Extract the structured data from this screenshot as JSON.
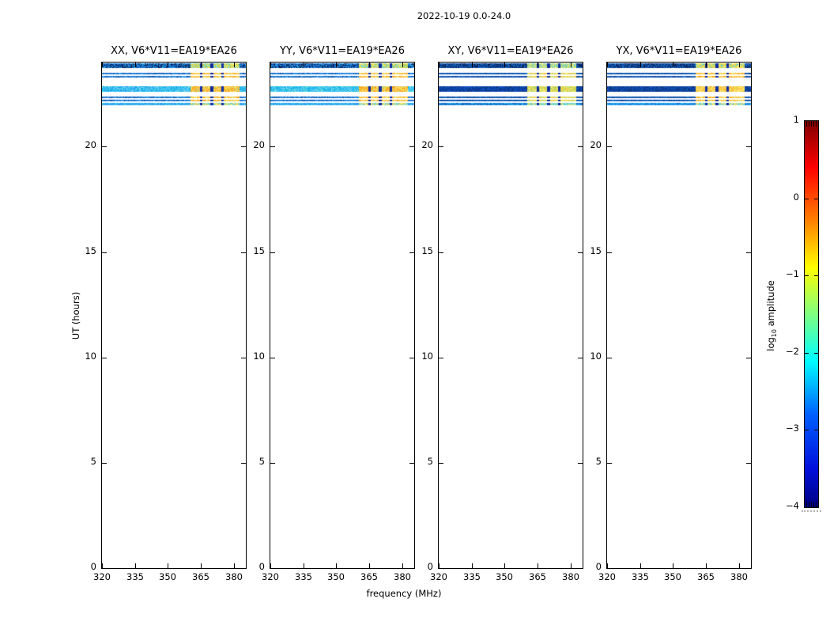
{
  "figure": {
    "title": "2022-10-19 0.0-24.0",
    "background": "#ffffff"
  },
  "chart_data": {
    "type": "heatmap",
    "title": "2022-10-19 0.0-24.0",
    "xlabel": "frequency (MHz)",
    "ylabel": "UT (hours)",
    "x_axis": {
      "range": [
        320,
        385.5
      ],
      "tick_values": [
        320,
        335,
        350,
        365,
        380
      ],
      "tick_labels": [
        "320",
        "335",
        "350",
        "365",
        "380"
      ]
    },
    "y_axis": {
      "range": [
        0,
        24
      ],
      "tick_values": [
        0,
        5,
        10,
        15,
        20
      ],
      "tick_labels": [
        "0",
        "5",
        "10",
        "15",
        "20"
      ]
    },
    "colorbar": {
      "label_prefix": "log",
      "label_sub": "10",
      "label_suffix": " amplitude",
      "range": [
        -4,
        1
      ],
      "tick_values": [
        1,
        0,
        -1,
        -2,
        -3,
        -4
      ],
      "tick_labels": [
        "1",
        "0",
        "−1",
        "−2",
        "−3",
        "−4"
      ],
      "colormap": "jet",
      "gradient_stops": [
        [
          "#7f0000",
          0
        ],
        [
          "#ff0000",
          12
        ],
        [
          "#ff8c00",
          27
        ],
        [
          "#ffff00",
          38
        ],
        [
          "#7fff7f",
          50
        ],
        [
          "#00ffff",
          62
        ],
        [
          "#0060ff",
          76
        ],
        [
          "#0010dd",
          90
        ],
        [
          "#00007f",
          100
        ]
      ]
    },
    "band_rows": [
      {
        "ut": [
          23.74,
          23.96
        ],
        "kind": "top"
      },
      {
        "ut": [
          23.44,
          23.53
        ],
        "kind": "thin"
      },
      {
        "ut": [
          23.27,
          23.36
        ],
        "kind": "thin"
      },
      {
        "ut": [
          22.61,
          22.87
        ],
        "kind": "thick"
      },
      {
        "ut": [
          22.31,
          22.4
        ],
        "kind": "thin"
      },
      {
        "ut": [
          22.16,
          22.25
        ],
        "kind": "thin"
      },
      {
        "ut": [
          21.97,
          22.07
        ],
        "kind": "dim"
      }
    ],
    "rfi": {
      "block_range_mhz": [
        360,
        382.3
      ],
      "gaps_mhz": [
        [
          364.3,
          365.4
        ],
        [
          369.3,
          370.4
        ],
        [
          374.3,
          375.4
        ]
      ]
    },
    "panels": [
      {
        "id": "xx",
        "title": "XX, V6*V11=EA19*EA26",
        "palettes": {
          "top_left": [
            "#1565c0",
            "#1e88e5",
            "#0d47a1",
            "#29b6f6",
            "#0b2d73",
            "#041133",
            "#1976d2"
          ],
          "top_block": [
            "#d4e157",
            "#fff176",
            "#4dd0e1",
            "#aed581",
            "#ffd54f",
            "#80deea",
            "#c0ca33"
          ],
          "thin_left": [
            "#1976d2",
            "#1565c0",
            "#2196f3",
            "#0d47a1",
            "#42a5f5"
          ],
          "thin_block": [
            "#ffb74d",
            "#ffa726",
            "#ffd54f",
            "#fff176",
            "#ff9800",
            "#dce775"
          ],
          "thick_left": [
            "#29b6f6",
            "#4fc3f7",
            "#03a9f4",
            "#81d4fa",
            "#26c6da",
            "#2196f3",
            "#4dd0e1"
          ],
          "thick_block": [
            "#ffd54f",
            "#ffca28",
            "#ffb74d",
            "#fff176",
            "#ffa726",
            "#aed581",
            "#ff9800"
          ],
          "dim_left": [
            "#29b6f6",
            "#4dd0e1",
            "#2196f3",
            "#42a5f5"
          ],
          "dim_block": [
            "#4dd0e1",
            "#fff176",
            "#ffd54f",
            "#80deea",
            "#aed581"
          ],
          "gap": [
            "#0d2f9e",
            "#0a1e96",
            "#1237b5"
          ]
        }
      },
      {
        "id": "yy",
        "title": "YY, V6*V11=EA19*EA26",
        "palettes": {
          "top_left": [
            "#1565c0",
            "#1e88e5",
            "#0d47a1",
            "#29b6f6",
            "#0b2d73",
            "#041133",
            "#1976d2"
          ],
          "top_block": [
            "#d4e157",
            "#fff176",
            "#4dd0e1",
            "#aed581",
            "#ffd54f",
            "#80deea",
            "#c0ca33"
          ],
          "thin_left": [
            "#1976d2",
            "#1565c0",
            "#2196f3",
            "#0d47a1",
            "#42a5f5"
          ],
          "thin_block": [
            "#ffb74d",
            "#ffa726",
            "#ffd54f",
            "#fff176",
            "#ff9800",
            "#dce775"
          ],
          "thick_left": [
            "#4dd0e1",
            "#4fc3f7",
            "#29b6f6",
            "#80deea",
            "#03a9f4",
            "#26c6da"
          ],
          "thick_block": [
            "#ffd54f",
            "#ffca28",
            "#ffb74d",
            "#fff176",
            "#ffa726",
            "#aed581",
            "#ff9800"
          ],
          "dim_left": [
            "#29b6f6",
            "#4dd0e1",
            "#2196f3",
            "#42a5f5"
          ],
          "dim_block": [
            "#4dd0e1",
            "#fff176",
            "#ffd54f",
            "#80deea",
            "#aed581"
          ],
          "gap": [
            "#0d2f9e",
            "#0a1e96",
            "#1237b5"
          ]
        }
      },
      {
        "id": "xy",
        "title": "XY, V6*V11=EA19*EA26",
        "palettes": {
          "top_left": [
            "#1565c0",
            "#0d47a1",
            "#0a3d91",
            "#1976d2",
            "#0b2d73",
            "#041133"
          ],
          "top_block": [
            "#aed581",
            "#dce775",
            "#4dd0e1",
            "#d4e157",
            "#80cbc4",
            "#fff176"
          ],
          "thin_left": [
            "#1565c0",
            "#0d47a1",
            "#1258b8",
            "#0a3d91",
            "#1976d2"
          ],
          "thin_block": [
            "#dce775",
            "#d4e157",
            "#ffca28",
            "#fff176",
            "#aed581",
            "#ffb74d"
          ],
          "thick_left": [
            "#0d47a1",
            "#0a3d91",
            "#1048c4",
            "#0b2d73",
            "#1155cc"
          ],
          "thick_block": [
            "#d4e157",
            "#dce775",
            "#fff176",
            "#aed581",
            "#ffca28",
            "#9ccc65"
          ],
          "dim_left": [
            "#1565c0",
            "#1976d2",
            "#29b6f6"
          ],
          "dim_block": [
            "#4dd0e1",
            "#dce775",
            "#aed581",
            "#80deea"
          ],
          "gap": [
            "#0d2f9e",
            "#0a1e96",
            "#1237b5"
          ]
        }
      },
      {
        "id": "yx",
        "title": "YX, V6*V11=EA19*EA26",
        "palettes": {
          "top_left": [
            "#1565c0",
            "#0d47a1",
            "#0a3d91",
            "#1976d2",
            "#0b2d73",
            "#041133"
          ],
          "top_block": [
            "#d4e157",
            "#fff176",
            "#ffd54f",
            "#aed581",
            "#4dd0e1",
            "#ffca28"
          ],
          "thin_left": [
            "#1565c0",
            "#0d47a1",
            "#1258b8",
            "#0a3d91",
            "#1976d2"
          ],
          "thin_block": [
            "#ffb74d",
            "#ffa726",
            "#ffd54f",
            "#fff176",
            "#ff9800",
            "#dce775"
          ],
          "thick_left": [
            "#0d47a1",
            "#0a3d91",
            "#1048c4",
            "#0b2d73",
            "#1258b8"
          ],
          "thick_block": [
            "#ffd54f",
            "#ffb74d",
            "#ffa726",
            "#fff176",
            "#ffca28",
            "#dce775"
          ],
          "dim_left": [
            "#1976d2",
            "#29b6f6",
            "#2196f3"
          ],
          "dim_block": [
            "#4dd0e1",
            "#fff176",
            "#ffd54f",
            "#80deea"
          ],
          "gap": [
            "#0d2f9e",
            "#0a1e96",
            "#1237b5"
          ]
        }
      }
    ]
  }
}
